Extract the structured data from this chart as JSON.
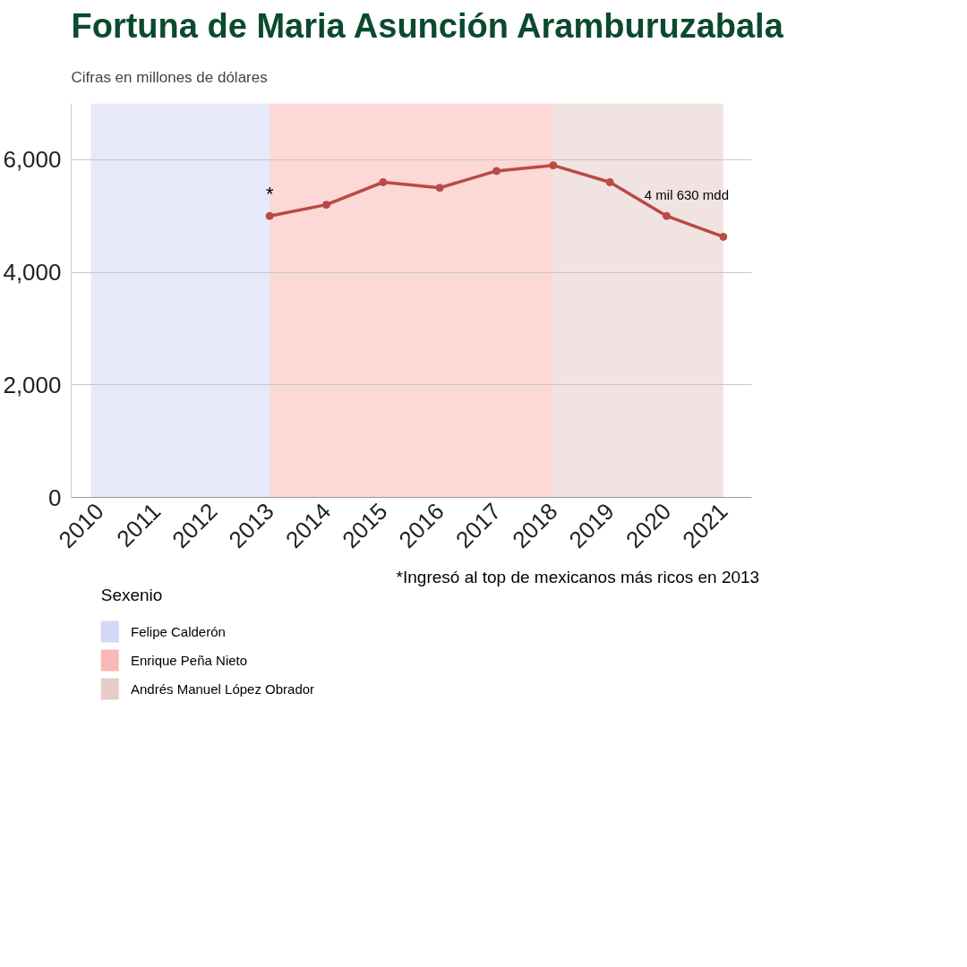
{
  "chart_data": {
    "type": "line",
    "title": "Fortuna de Maria Asunción Aramburuzabala",
    "subtitle": "Cifras en millones de dólares",
    "x": [
      2013,
      2014,
      2015,
      2016,
      2017,
      2018,
      2019,
      2020,
      2021
    ],
    "series": [
      {
        "color": "#b94a44",
        "values": [
          5000,
          5200,
          5600,
          5500,
          5800,
          5900,
          5600,
          5000,
          4630
        ]
      }
    ],
    "xlim": [
      2009.5,
      2021.5
    ],
    "xticks": [
      2010,
      2011,
      2012,
      2013,
      2014,
      2015,
      2016,
      2017,
      2018,
      2019,
      2020,
      2021
    ],
    "ylim": [
      0,
      7000
    ],
    "yticks": [
      0,
      {
        "value": 2000,
        "label": "2,000"
      },
      {
        "value": 4000,
        "label": "4,000"
      },
      {
        "value": 6000,
        "label": "6,000"
      }
    ],
    "bands": [
      {
        "axis": "x",
        "from": 2009.85,
        "to": 2013,
        "label": "Felipe Calderón",
        "color": "#c9cdf3"
      },
      {
        "axis": "x",
        "from": 2013,
        "to": 2018,
        "label": "Enrique Peña Nieto",
        "color": "#f8a8a6"
      },
      {
        "axis": "x",
        "from": 2018,
        "to": 2021,
        "label": "Andrés Manuel López Obrador",
        "color": "#e0c0bc"
      }
    ],
    "legend_title": "Sexenio",
    "legend": "bottom left",
    "grid": "y",
    "marker": "circle",
    "line_style": "solid",
    "annotations": [
      {
        "text": "*",
        "x": 2013,
        "y": 5000
      },
      {
        "text": "4 mil 630 mdd",
        "x": 2021,
        "y": 4630
      },
      "*Ingresó al top de mexicanos más ricos en 2013"
    ]
  }
}
